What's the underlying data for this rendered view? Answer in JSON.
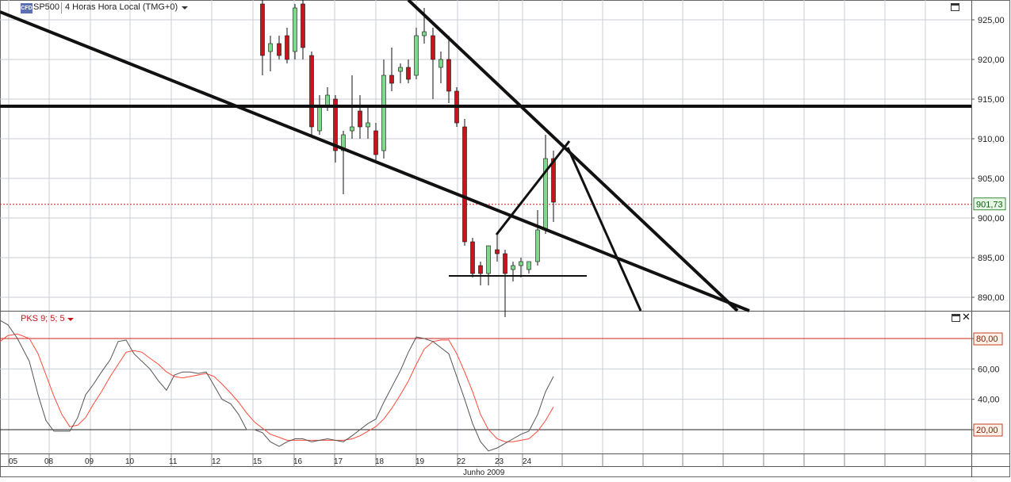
{
  "header": {
    "symbol": "SP500",
    "timeframe": "4 Horas Hora Local (TMG+0)",
    "logo_text": "CFD"
  },
  "indicator": {
    "name": "PKS 9; 5; 5"
  },
  "colors": {
    "bull": "#7fd98a",
    "bear": "#c8141c",
    "price_line": "#cc2222",
    "stoch_main": "#555555",
    "stoch_signal": "#ff4a3a",
    "grid": "#c9ced6",
    "trendline": "#111111"
  },
  "chart_data": [
    {
      "type": "candlestick",
      "y_ticks": [
        "925,00",
        "920,00",
        "915,00",
        "910,00",
        "905,00",
        "900,00",
        "895,00",
        "890,00"
      ],
      "ylim": [
        889,
        927.5
      ],
      "current_price": 901.73,
      "current_price_label": "901,73",
      "candles": [
        {
          "x": 331,
          "o": 927,
          "h": 928,
          "l": 918,
          "c": 920.5
        },
        {
          "x": 341,
          "o": 921,
          "h": 923,
          "l": 918.5,
          "c": 922
        },
        {
          "x": 352,
          "o": 922,
          "h": 923,
          "l": 920,
          "c": 920.5
        },
        {
          "x": 362,
          "o": 923,
          "h": 924,
          "l": 919.5,
          "c": 920
        },
        {
          "x": 372,
          "o": 921,
          "h": 927,
          "l": 920,
          "c": 926.5
        },
        {
          "x": 382,
          "o": 927,
          "h": 928,
          "l": 920,
          "c": 921.5
        },
        {
          "x": 393,
          "o": 920.5,
          "h": 921,
          "l": 910.5,
          "c": 911.5
        },
        {
          "x": 403,
          "o": 911,
          "h": 915.5,
          "l": 910.5,
          "c": 914
        },
        {
          "x": 413,
          "o": 914,
          "h": 916.5,
          "l": 913.5,
          "c": 915.5
        },
        {
          "x": 423,
          "o": 915,
          "h": 915.5,
          "l": 907,
          "c": 908.5
        },
        {
          "x": 433,
          "o": 908.5,
          "h": 911,
          "l": 903,
          "c": 910.5
        },
        {
          "x": 444,
          "o": 911,
          "h": 918,
          "l": 910,
          "c": 911.5
        },
        {
          "x": 454,
          "o": 913.5,
          "h": 915.5,
          "l": 910,
          "c": 911.5
        },
        {
          "x": 464,
          "o": 911.5,
          "h": 914,
          "l": 910,
          "c": 912
        },
        {
          "x": 474,
          "o": 911,
          "h": 912,
          "l": 907,
          "c": 908
        },
        {
          "x": 484,
          "o": 908.5,
          "h": 920,
          "l": 907.5,
          "c": 918
        },
        {
          "x": 494,
          "o": 918,
          "h": 921.5,
          "l": 916,
          "c": 917
        },
        {
          "x": 505,
          "o": 918.5,
          "h": 919.5,
          "l": 917,
          "c": 919
        },
        {
          "x": 515,
          "o": 919,
          "h": 920,
          "l": 917,
          "c": 917.5
        },
        {
          "x": 525,
          "o": 918,
          "h": 924,
          "l": 917.5,
          "c": 923
        },
        {
          "x": 535,
          "o": 923,
          "h": 926.5,
          "l": 922,
          "c": 923.5
        },
        {
          "x": 546,
          "o": 923,
          "h": 924,
          "l": 915,
          "c": 920
        },
        {
          "x": 556,
          "o": 919,
          "h": 921,
          "l": 917,
          "c": 920
        },
        {
          "x": 566,
          "o": 920,
          "h": 923,
          "l": 914.5,
          "c": 916
        },
        {
          "x": 576,
          "o": 916,
          "h": 916.5,
          "l": 911.5,
          "c": 912
        },
        {
          "x": 586,
          "o": 911.5,
          "h": 912.5,
          "l": 896.5,
          "c": 897
        },
        {
          "x": 596,
          "o": 897,
          "h": 897.5,
          "l": 892.5,
          "c": 893
        },
        {
          "x": 606,
          "o": 894,
          "h": 894.5,
          "l": 891.5,
          "c": 893
        },
        {
          "x": 616,
          "o": 893,
          "h": 896.5,
          "l": 891.5,
          "c": 896.5
        },
        {
          "x": 627,
          "o": 896,
          "h": 898,
          "l": 894.5,
          "c": 895.5
        },
        {
          "x": 637,
          "o": 895.5,
          "h": 896,
          "l": 887.5,
          "c": 893
        },
        {
          "x": 647,
          "o": 893.5,
          "h": 894.5,
          "l": 892,
          "c": 894
        },
        {
          "x": 657,
          "o": 894,
          "h": 895,
          "l": 892.5,
          "c": 894.5
        },
        {
          "x": 667,
          "o": 893.5,
          "h": 894.5,
          "l": 893,
          "c": 894.5
        },
        {
          "x": 678,
          "o": 894.5,
          "h": 901,
          "l": 894,
          "c": 898.5
        },
        {
          "x": 688,
          "o": 898.5,
          "h": 910.5,
          "l": 898,
          "c": 907.5
        },
        {
          "x": 698,
          "o": 907.5,
          "h": 908.5,
          "l": 899.5,
          "c": 902
        }
      ]
    },
    {
      "type": "line",
      "title": "PKS 9; 5; 5",
      "ylim": [
        2,
        100
      ],
      "y_ticks": [
        "80,00",
        "60,00",
        "40,00",
        "20,00"
      ],
      "levels": [
        80,
        20
      ],
      "level_labels": [
        "80,00",
        "20,00"
      ],
      "series": [
        {
          "values": [
            [
              0,
              92
            ],
            [
              10,
              89
            ],
            [
              22,
              80
            ],
            [
              37,
              65
            ],
            [
              48,
              43
            ],
            [
              58,
              26
            ],
            [
              68,
              19
            ],
            [
              78,
              19
            ],
            [
              88,
              19
            ],
            [
              98,
              28
            ],
            [
              108,
              43
            ],
            [
              118,
              50
            ],
            [
              128,
              58
            ],
            [
              139,
              66
            ],
            [
              149,
              78
            ],
            [
              159,
              79
            ],
            [
              169,
              70
            ],
            [
              179,
              65
            ],
            [
              189,
              60
            ],
            [
              200,
              52
            ],
            [
              210,
              46
            ],
            [
              220,
              56
            ],
            [
              230,
              58
            ],
            [
              240,
              58
            ],
            [
              250,
              57
            ],
            [
              260,
              58
            ],
            [
              270,
              49
            ],
            [
              280,
              40
            ],
            [
              291,
              37
            ],
            [
              301,
              30
            ],
            [
              311,
              20
            ],
            [
              321,
              20
            ],
            [
              331,
              18
            ],
            [
              341,
              12
            ],
            [
              352,
              9
            ],
            [
              362,
              12
            ],
            [
              372,
              14
            ],
            [
              382,
              14
            ],
            [
              393,
              12
            ],
            [
              403,
              13
            ],
            [
              413,
              14
            ],
            [
              423,
              13
            ],
            [
              433,
              12
            ],
            [
              444,
              16
            ],
            [
              454,
              20
            ],
            [
              464,
              24
            ],
            [
              474,
              27
            ],
            [
              484,
              38
            ],
            [
              494,
              48
            ],
            [
              505,
              59
            ],
            [
              515,
              71
            ],
            [
              525,
              81
            ],
            [
              535,
              80
            ],
            [
              546,
              78
            ],
            [
              556,
              74
            ],
            [
              566,
              70
            ],
            [
              576,
              55
            ],
            [
              586,
              40
            ],
            [
              596,
              24
            ],
            [
              606,
              12
            ],
            [
              616,
              6
            ],
            [
              627,
              8
            ],
            [
              637,
              11
            ],
            [
              647,
              14
            ],
            [
              657,
              17
            ],
            [
              667,
              19
            ],
            [
              678,
              30
            ],
            [
              688,
              45
            ],
            [
              698,
              55
            ]
          ]
        },
        {
          "values": [
            [
              0,
              78
            ],
            [
              10,
              82
            ],
            [
              22,
              83
            ],
            [
              37,
              80
            ],
            [
              48,
              70
            ],
            [
              58,
              56
            ],
            [
              68,
              42
            ],
            [
              78,
              30
            ],
            [
              88,
              22
            ],
            [
              98,
              23
            ],
            [
              108,
              28
            ],
            [
              118,
              37
            ],
            [
              128,
              45
            ],
            [
              139,
              55
            ],
            [
              149,
              63
            ],
            [
              159,
              71
            ],
            [
              169,
              72
            ],
            [
              179,
              71
            ],
            [
              189,
              67
            ],
            [
              200,
              63
            ],
            [
              210,
              58
            ],
            [
              220,
              55
            ],
            [
              230,
              54
            ],
            [
              240,
              55
            ],
            [
              250,
              56
            ],
            [
              260,
              57
            ],
            [
              270,
              55
            ],
            [
              280,
              50
            ],
            [
              291,
              44
            ],
            [
              301,
              38
            ],
            [
              311,
              31
            ],
            [
              321,
              25
            ],
            [
              331,
              21
            ],
            [
              341,
              17
            ],
            [
              352,
              15
            ],
            [
              362,
              13
            ],
            [
              372,
              13
            ],
            [
              382,
              13
            ],
            [
              393,
              13
            ],
            [
              403,
              13
            ],
            [
              413,
              13
            ],
            [
              423,
              13
            ],
            [
              433,
              13
            ],
            [
              444,
              14
            ],
            [
              454,
              16
            ],
            [
              464,
              19
            ],
            [
              474,
              22
            ],
            [
              484,
              27
            ],
            [
              494,
              34
            ],
            [
              505,
              43
            ],
            [
              515,
              52
            ],
            [
              525,
              63
            ],
            [
              535,
              73
            ],
            [
              546,
              78
            ],
            [
              556,
              79
            ],
            [
              566,
              79
            ],
            [
              576,
              70
            ],
            [
              586,
              58
            ],
            [
              596,
              45
            ],
            [
              606,
              30
            ],
            [
              616,
              20
            ],
            [
              627,
              14
            ],
            [
              637,
              12
            ],
            [
              647,
              12
            ],
            [
              657,
              13
            ],
            [
              667,
              14
            ],
            [
              678,
              19
            ],
            [
              688,
              26
            ],
            [
              698,
              35
            ]
          ]
        }
      ]
    }
  ],
  "x_axis": {
    "ticks": [
      "05",
      "08",
      "09",
      "10",
      "11",
      "12",
      "15",
      "16",
      "17",
      "18",
      "19",
      "22",
      "23",
      "24"
    ],
    "month_label": "Junho 2009"
  }
}
